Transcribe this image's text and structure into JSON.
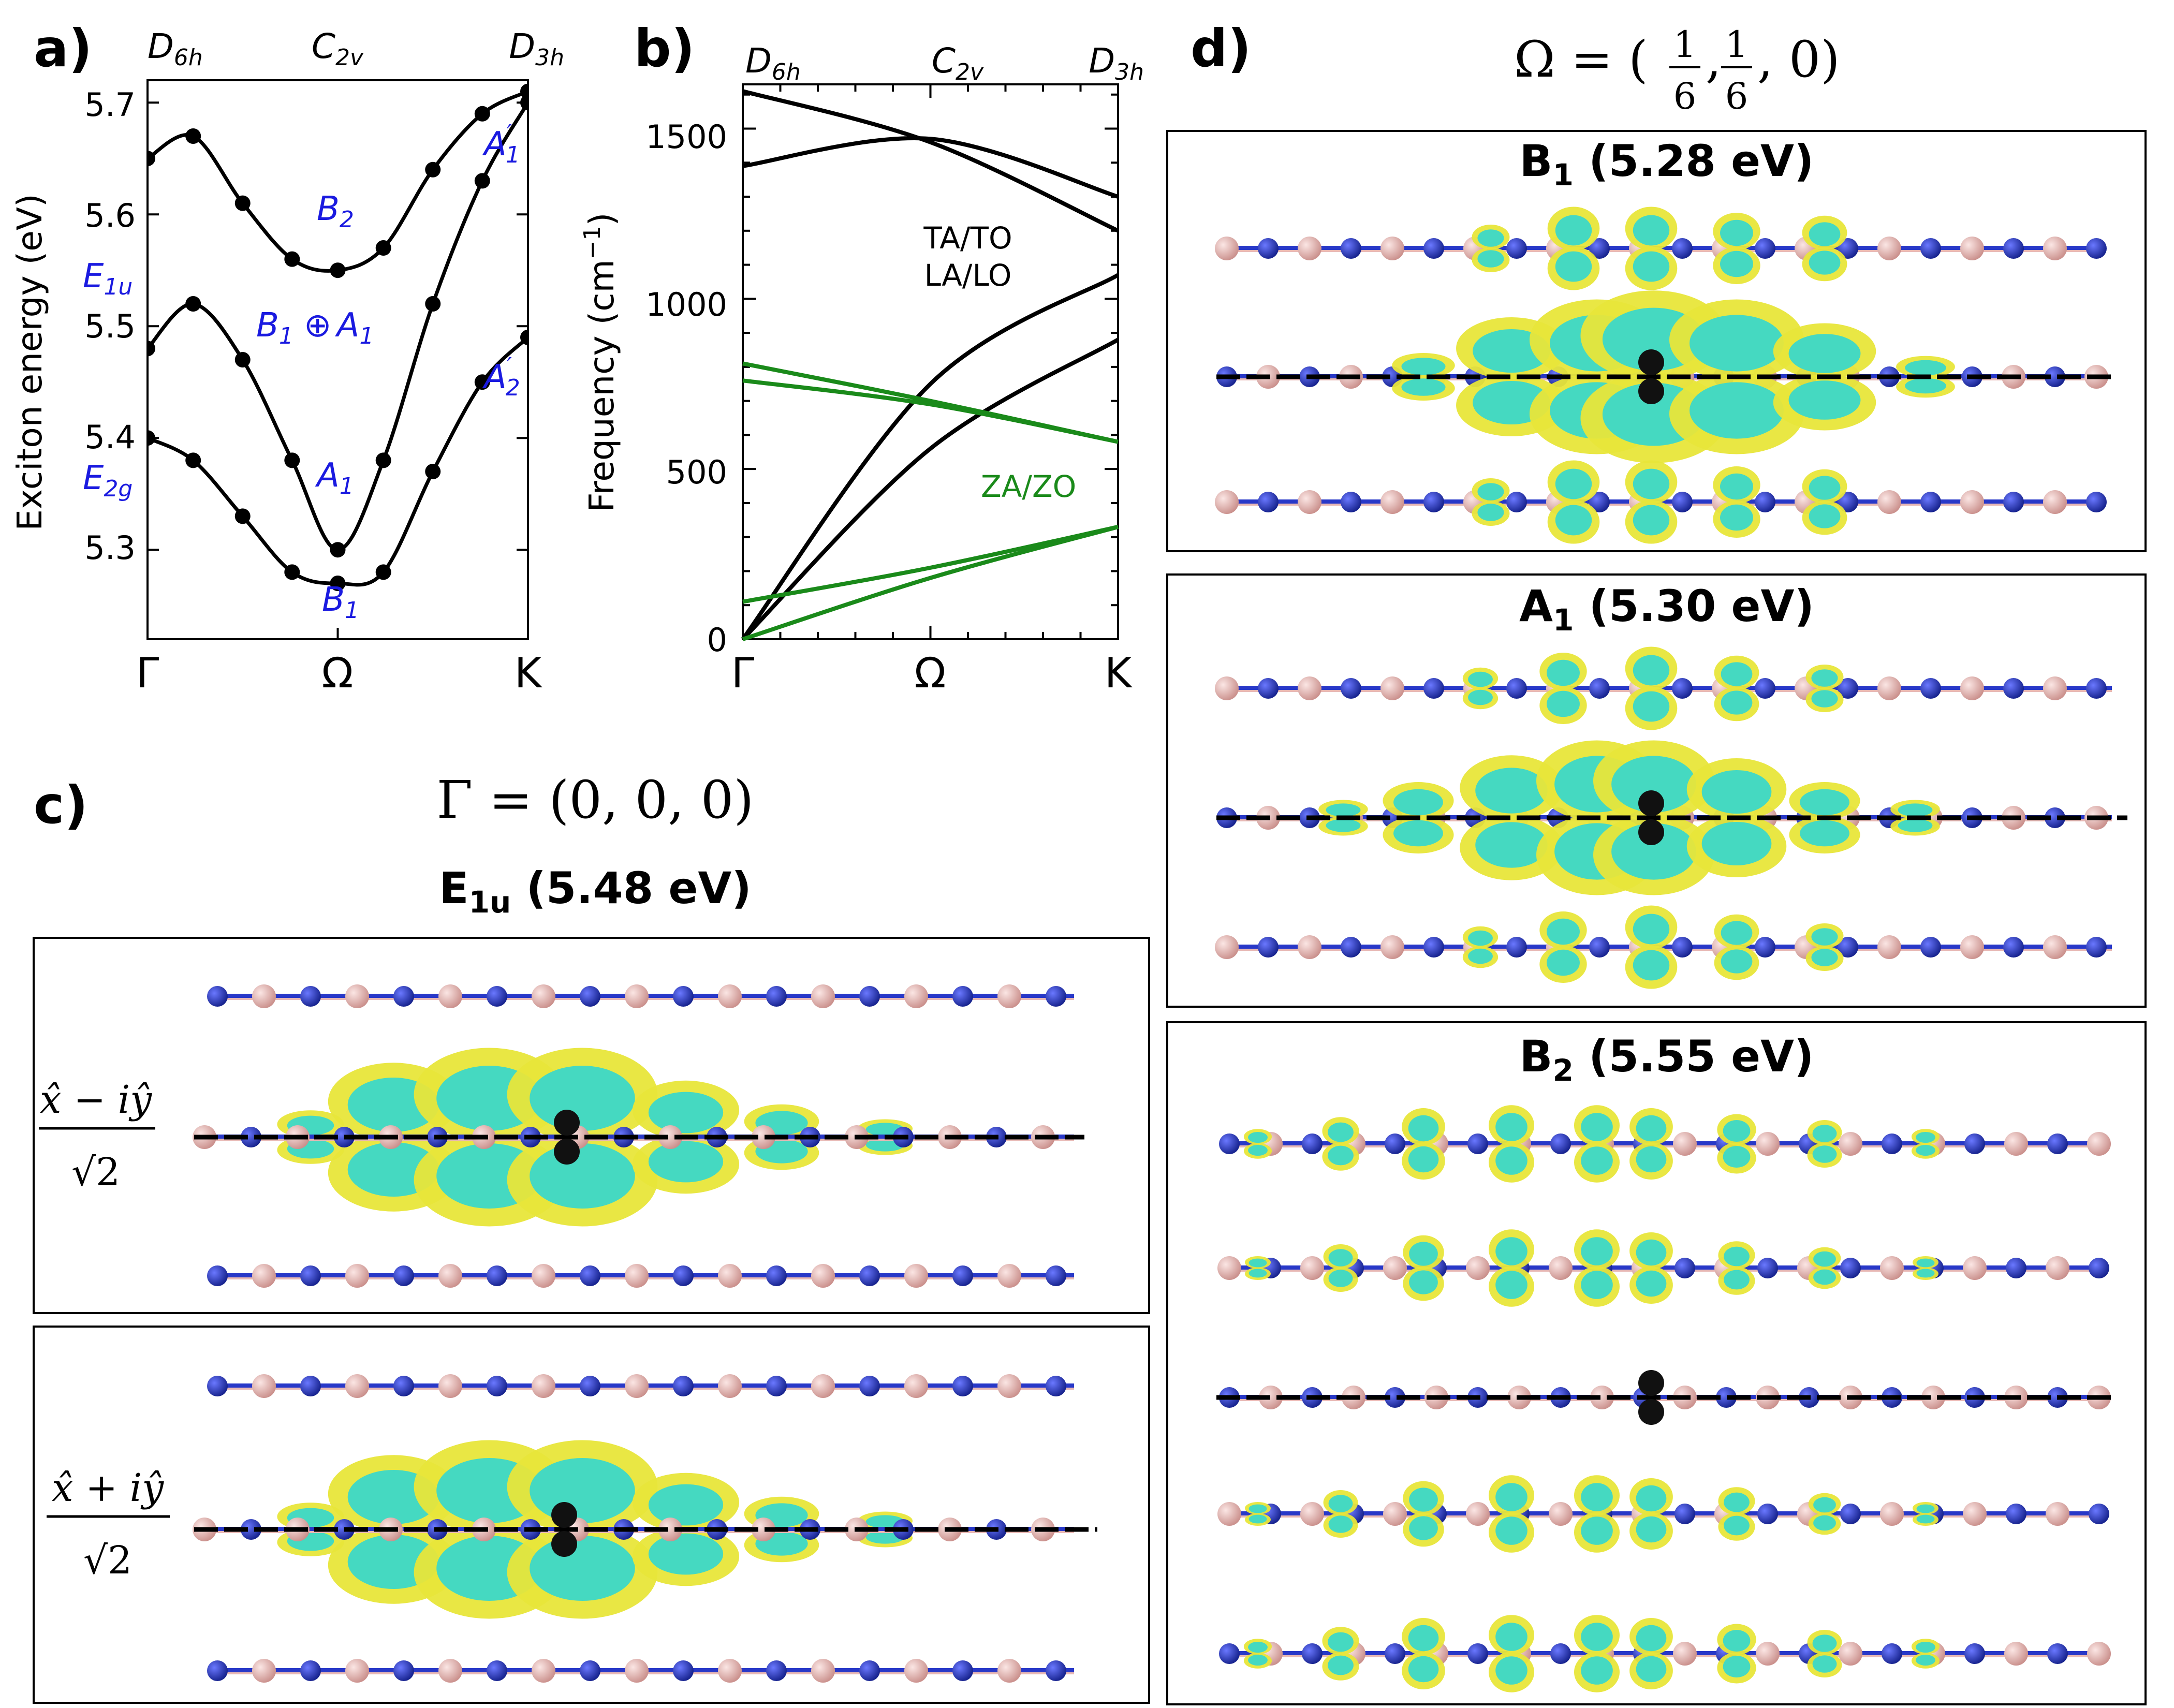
{
  "panel_labels": {
    "a": "a)",
    "b": "b)",
    "c": "c)",
    "d": "d)"
  },
  "panel_a": {
    "ylabel": "Exciton energy (eV)",
    "yticks": [
      "5.3",
      "5.4",
      "5.5",
      "5.6",
      "5.7"
    ],
    "xticks": [
      "Γ",
      "Ω",
      "K"
    ],
    "groups": {
      "left": "D",
      "left_sub": "6h",
      "mid": "C",
      "mid_sub": "2v",
      "right": "D",
      "right_sub": "3h"
    },
    "annotations": {
      "E1u": "E",
      "E1u_sub": "1u",
      "E2g": "E",
      "E2g_sub": "2g",
      "B2": "B",
      "B2_sub": "2",
      "B1A1": "B",
      "B1A1_sub": "1",
      "oplus": "⊕",
      "A1b": "A",
      "A1b_sub": "1",
      "A1": "A",
      "A1_sub": "1",
      "B1": "B",
      "B1_sub": "1",
      "A1p": "A",
      "A1p_prime": "′",
      "A1p_sub": "1",
      "A2p": "A",
      "A2p_prime": "′",
      "A2p_sub": "2"
    }
  },
  "panel_b": {
    "ylabel": "Frequency (cm",
    "ylabel_sup": "−1",
    "ylabel_end": ")",
    "yticks": [
      "0",
      "500",
      "1000",
      "1500"
    ],
    "xticks": [
      "Γ",
      "Ω",
      "K"
    ],
    "groups": {
      "left": "D",
      "left_sub": "6h",
      "mid": "C",
      "mid_sub": "2v",
      "right": "D",
      "right_sub": "3h"
    },
    "label_ta": "TA/TO",
    "label_la": "LA/LO",
    "label_za": "ZA/ZO"
  },
  "panel_c": {
    "header": "Γ = (0, 0, 0)",
    "title": "E",
    "title_sub": "1u",
    "title_energy": " (5.48 eV)",
    "pol1_num": "x̂ − iŷ",
    "pol1_den": "√2",
    "pol2_num": "x̂ + iŷ",
    "pol2_den": "√2"
  },
  "panel_d": {
    "header_lhs": "Ω = (",
    "header_num": "1",
    "header_den": "6",
    "header_sep": ",",
    "header_tail": ", 0)",
    "boxes": [
      {
        "title": "B",
        "sub": "1",
        "energy": " (5.28 eV)"
      },
      {
        "title": "A",
        "sub": "1",
        "energy": " (5.30 eV)"
      },
      {
        "title": "B",
        "sub": "2",
        "energy": " (5.55 eV)"
      }
    ]
  },
  "colors": {
    "boron": "#e8b8b4",
    "nitrogen": "#2838c8",
    "iso_yellow": "#e8e63a",
    "iso_cyan": "#3cd8c8",
    "blue_label": "#1a1ae0",
    "green_branch": "#1a8a1a"
  },
  "chart_data": [
    {
      "type": "line",
      "title": "",
      "ylabel": "Exciton energy (eV)",
      "x_ticks": [
        "Γ",
        "Ω",
        "K"
      ],
      "ylim": [
        5.22,
        5.72
      ],
      "series": [
        {
          "name": "",
          "x": [
            0.0,
            0.12,
            0.25,
            0.38,
            0.5,
            0.62,
            0.75,
            0.88,
            1.0
          ],
          "y": [
            5.4,
            5.38,
            5.33,
            5.28,
            5.27,
            5.28,
            5.37,
            5.45,
            5.49
          ]
        },
        {
          "name": "",
          "x": [
            0.0,
            0.12,
            0.25,
            0.38,
            0.5,
            0.62,
            0.75,
            0.88,
            1.0
          ],
          "y": [
            5.48,
            5.52,
            5.47,
            5.38,
            5.3,
            5.38,
            5.52,
            5.63,
            5.7
          ]
        },
        {
          "name": "",
          "x": [
            0.0,
            0.12,
            0.25,
            0.38,
            0.5,
            0.62,
            0.75,
            0.88,
            1.0
          ],
          "y": [
            5.65,
            5.67,
            5.61,
            5.56,
            5.55,
            5.57,
            5.64,
            5.69,
            5.71
          ]
        }
      ]
    },
    {
      "type": "line",
      "title": "",
      "ylabel": "Frequency (cm−1)",
      "x_ticks": [
        "Γ",
        "Ω",
        "K"
      ],
      "ylim": [
        0,
        1630
      ],
      "series": [
        {
          "name": "TA/TO",
          "x": [
            0.0,
            0.5,
            1.0
          ],
          "y": [
            1610,
            1460,
            1200
          ]
        },
        {
          "name": "TA/TO",
          "x": [
            0.0,
            0.5,
            1.0
          ],
          "y": [
            1390,
            1470,
            1300
          ]
        },
        {
          "name": "LA/LO",
          "x": [
            0.0,
            0.5,
            1.0
          ],
          "y": [
            0,
            750,
            1070
          ]
        },
        {
          "name": "LA/LO",
          "x": [
            0.0,
            0.5,
            1.0
          ],
          "y": [
            0,
            560,
            880
          ]
        },
        {
          "name": "ZA/ZO",
          "x": [
            0.0,
            0.5,
            1.0
          ],
          "y": [
            810,
            700,
            580
          ]
        },
        {
          "name": "ZA/ZO",
          "x": [
            0.0,
            0.5,
            1.0
          ],
          "y": [
            760,
            690,
            580
          ]
        },
        {
          "name": "ZA/ZO",
          "x": [
            0.0,
            0.5,
            1.0
          ],
          "y": [
            110,
            210,
            330
          ]
        },
        {
          "name": "ZA/ZO",
          "x": [
            0.0,
            0.5,
            1.0
          ],
          "y": [
            0,
            180,
            330
          ]
        }
      ]
    }
  ]
}
